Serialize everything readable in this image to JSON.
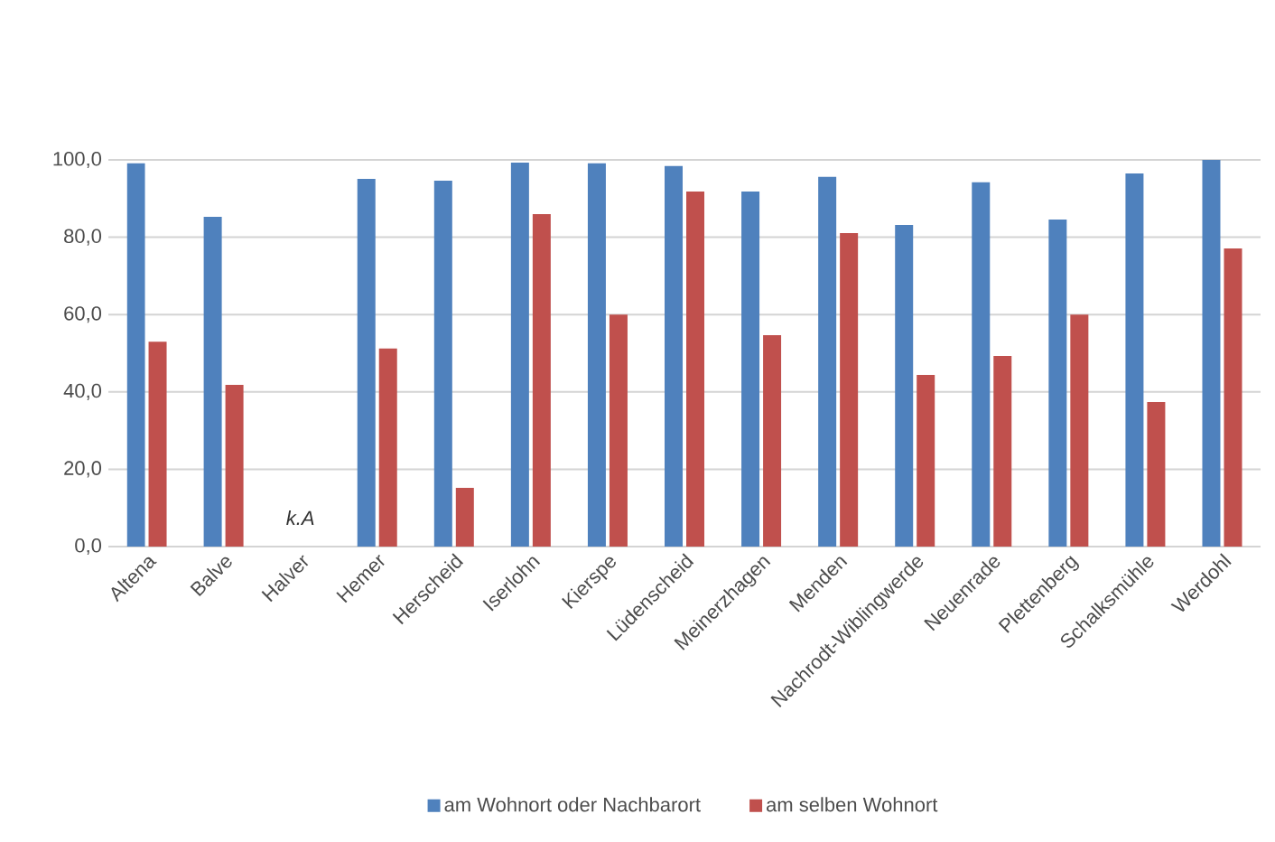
{
  "chart_data": {
    "type": "bar",
    "categories": [
      "Altena",
      "Balve",
      "Halver",
      "Hemer",
      "Herscheid",
      "Iserlohn",
      "Kierspe",
      "Lüdenscheid",
      "Meinerzhagen",
      "Menden",
      "Nachrodt-Wiblingwerde",
      "Neuenrade",
      "Plettenberg",
      "Schalksmühle",
      "Werdohl"
    ],
    "series": [
      {
        "name": "am Wohnort oder Nachbarort",
        "color": "#4f81bd",
        "values": [
          99.1,
          85.3,
          null,
          95.1,
          94.6,
          99.3,
          99.1,
          98.4,
          91.8,
          95.6,
          83.2,
          94.2,
          84.6,
          96.5,
          100.0
        ]
      },
      {
        "name": "am selben Wohnort",
        "color": "#c0504d",
        "values": [
          53.0,
          41.8,
          null,
          51.2,
          15.2,
          86.0,
          60.0,
          91.8,
          54.7,
          81.1,
          44.4,
          49.3,
          60.0,
          37.4,
          77.1
        ]
      }
    ],
    "ylim": [
      0,
      100
    ],
    "yticks": [
      {
        "value": 0,
        "label": "0,0"
      },
      {
        "value": 20,
        "label": "20,0"
      },
      {
        "value": 40,
        "label": "40,0"
      },
      {
        "value": 60,
        "label": "60,0"
      },
      {
        "value": 80,
        "label": "80,0"
      },
      {
        "value": 100,
        "label": "100,0"
      }
    ],
    "grid": "y",
    "legend": "bottom",
    "annotations": [
      "k.A"
    ]
  }
}
